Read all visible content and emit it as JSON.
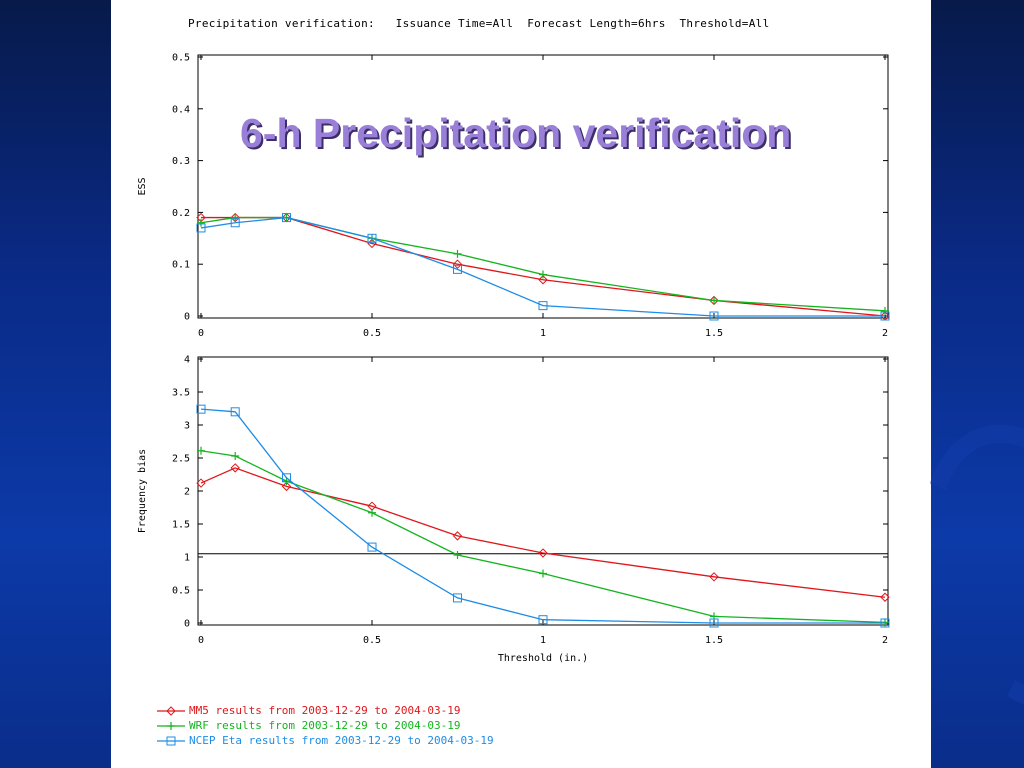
{
  "slide": {
    "title": "6-h Precipitation verification",
    "title_color": "#9a7fd8",
    "background_color": "#0c3aa8"
  },
  "header": {
    "text": "Precipitation verification:   Issuance Time=All  Forecast Length=6hrs  Threshold=All"
  },
  "legend": [
    {
      "label": "MM5 results from 2003-12-29 to 2004-03-19",
      "color": "#e0161b",
      "marker": "diamond"
    },
    {
      "label": "WRF results from 2003-12-29 to 2004-03-19",
      "color": "#14b41e",
      "marker": "plus"
    },
    {
      "label": "NCEP Eta results from 2003-12-29 to 2004-03-19",
      "color": "#1e8ce6",
      "marker": "square"
    }
  ],
  "chart_data": [
    {
      "type": "line",
      "title": "",
      "xlabel": "",
      "ylabel": "ESS",
      "xlim": [
        0,
        2
      ],
      "ylim": [
        0,
        0.5
      ],
      "xticks": [
        "0",
        "0.5",
        "1",
        "1.5",
        "2"
      ],
      "yticks": [
        "0",
        "0.1",
        "0.2",
        "0.3",
        "0.4",
        "0.5"
      ],
      "series": [
        {
          "name": "MM5",
          "color": "#e0161b",
          "marker": "diamond",
          "x": [
            0,
            0.1,
            0.25,
            0.5,
            0.75,
            1,
            1.5,
            2
          ],
          "y": [
            0.19,
            0.19,
            0.19,
            0.14,
            0.1,
            0.07,
            0.03,
            0.0
          ]
        },
        {
          "name": "WRF",
          "color": "#14b41e",
          "marker": "plus",
          "x": [
            0,
            0.1,
            0.25,
            0.5,
            0.75,
            1,
            1.5,
            2
          ],
          "y": [
            0.18,
            0.19,
            0.19,
            0.15,
            0.12,
            0.08,
            0.03,
            0.01
          ]
        },
        {
          "name": "NCEP Eta",
          "color": "#1e8ce6",
          "marker": "square",
          "x": [
            0,
            0.1,
            0.25,
            0.5,
            0.75,
            1,
            1.5,
            2
          ],
          "y": [
            0.17,
            0.18,
            0.19,
            0.15,
            0.09,
            0.02,
            0.0,
            0.0
          ]
        }
      ]
    },
    {
      "type": "line",
      "title": "",
      "xlabel": "Threshold (in.)",
      "ylabel": "Frequency bias",
      "xlim": [
        0,
        2
      ],
      "ylim": [
        0,
        4
      ],
      "xticks": [
        "0",
        "0.5",
        "1",
        "1.5",
        "2"
      ],
      "yticks": [
        "0",
        "0.5",
        "1",
        "1.5",
        "2",
        "2.5",
        "3",
        "3.5",
        "4"
      ],
      "reference_line_y": 1.05,
      "series": [
        {
          "name": "MM5",
          "color": "#e0161b",
          "marker": "diamond",
          "x": [
            0,
            0.1,
            0.25,
            0.5,
            0.75,
            1,
            1.5,
            2
          ],
          "y": [
            2.12,
            2.35,
            2.07,
            1.77,
            1.32,
            1.06,
            0.7,
            0.39
          ]
        },
        {
          "name": "WRF",
          "color": "#14b41e",
          "marker": "plus",
          "x": [
            0,
            0.1,
            0.25,
            0.5,
            0.75,
            1,
            1.5,
            2
          ],
          "y": [
            2.61,
            2.53,
            2.15,
            1.67,
            1.03,
            0.75,
            0.1,
            0.01
          ]
        },
        {
          "name": "NCEP Eta",
          "color": "#1e8ce6",
          "marker": "square",
          "x": [
            0,
            0.1,
            0.25,
            0.5,
            0.75,
            1,
            1.5,
            2
          ],
          "y": [
            3.24,
            3.2,
            2.2,
            1.15,
            0.38,
            0.05,
            0.0,
            0.0
          ]
        }
      ]
    }
  ]
}
